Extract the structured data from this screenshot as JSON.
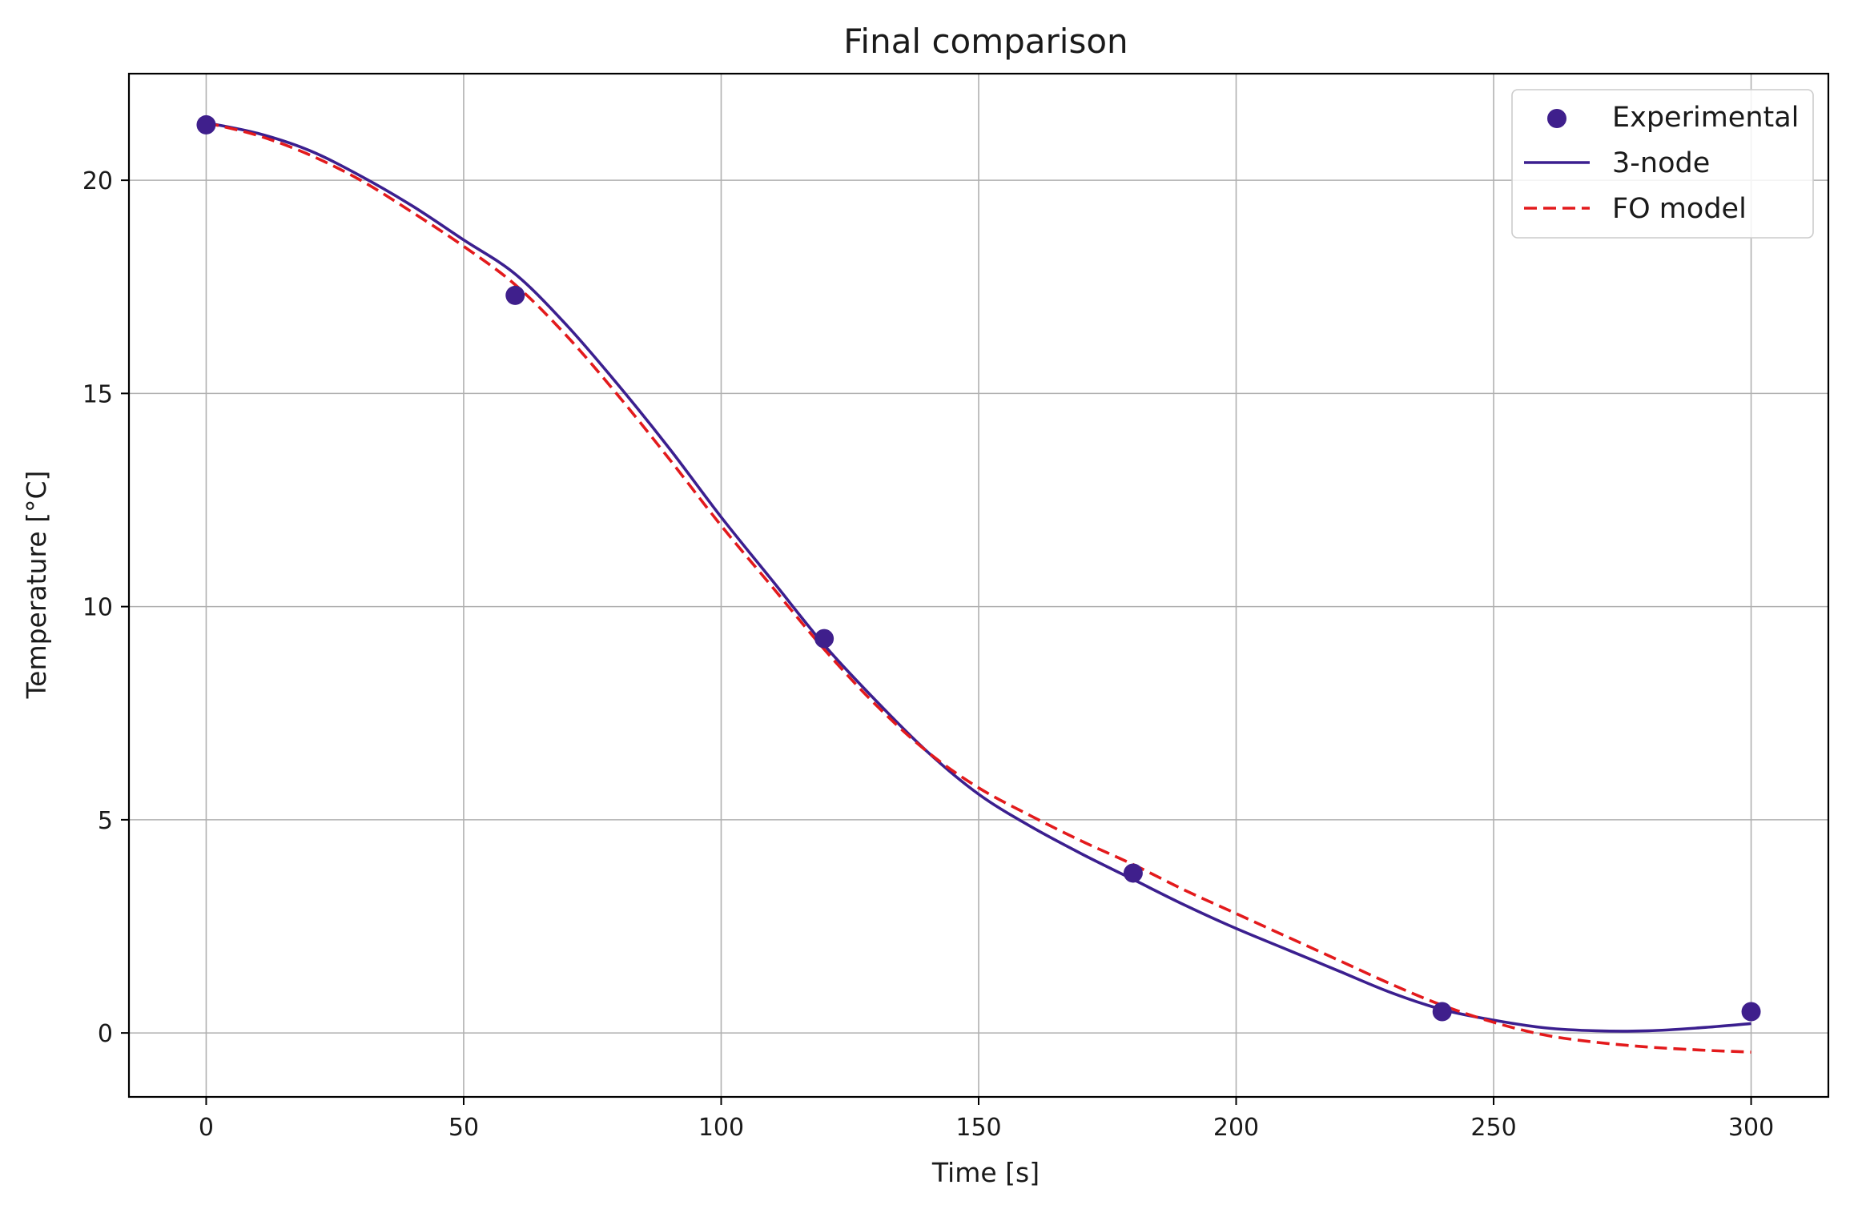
{
  "chart_data": {
    "type": "line",
    "title": "Final comparison",
    "xlabel": "Time [s]",
    "ylabel": "Temperature [°C]",
    "xlim": [
      -15,
      315
    ],
    "ylim": [
      -1.5,
      22.5
    ],
    "xticks": [
      0,
      50,
      100,
      150,
      200,
      250,
      300
    ],
    "xtick_labels": [
      "0",
      "50",
      "100",
      "150",
      "200",
      "250",
      "300"
    ],
    "yticks": [
      0,
      5,
      10,
      15,
      20
    ],
    "ytick_labels": [
      "0",
      "5",
      "10",
      "15",
      "20"
    ],
    "grid": true,
    "legend_position": "top-right",
    "series": [
      {
        "name": "Experimental",
        "kind": "scatter",
        "color": "#3f1f8c",
        "x": [
          0,
          60,
          120,
          180,
          240,
          300
        ],
        "y": [
          21.3,
          17.3,
          9.25,
          3.75,
          0.5,
          0.5
        ]
      },
      {
        "name": "3-node",
        "kind": "line",
        "color": "#3b1f8f",
        "x": [
          0,
          10,
          20,
          30,
          40,
          50,
          60,
          70,
          80,
          90,
          100,
          110,
          120,
          130,
          140,
          150,
          160,
          170,
          180,
          190,
          200,
          210,
          220,
          230,
          240,
          250,
          260,
          270,
          280,
          290,
          300
        ],
        "y": [
          21.35,
          21.1,
          20.7,
          20.1,
          19.4,
          18.6,
          17.8,
          16.6,
          15.2,
          13.7,
          12.1,
          10.6,
          9.1,
          7.8,
          6.6,
          5.6,
          4.85,
          4.2,
          3.6,
          3.0,
          2.45,
          1.95,
          1.45,
          0.95,
          0.55,
          0.3,
          0.12,
          0.05,
          0.05,
          0.12,
          0.22
        ]
      },
      {
        "name": "FO model",
        "kind": "line",
        "dashed": true,
        "color": "#e31a1c",
        "x": [
          0,
          10,
          20,
          30,
          40,
          50,
          60,
          70,
          80,
          90,
          100,
          110,
          120,
          130,
          140,
          150,
          160,
          170,
          180,
          190,
          200,
          210,
          220,
          230,
          240,
          250,
          260,
          270,
          280,
          290,
          300
        ],
        "y": [
          21.35,
          21.05,
          20.6,
          20.0,
          19.25,
          18.45,
          17.55,
          16.35,
          14.95,
          13.45,
          11.9,
          10.45,
          9.0,
          7.7,
          6.6,
          5.75,
          5.1,
          4.5,
          3.95,
          3.35,
          2.8,
          2.25,
          1.7,
          1.15,
          0.65,
          0.25,
          -0.05,
          -0.22,
          -0.33,
          -0.4,
          -0.45
        ]
      }
    ]
  }
}
